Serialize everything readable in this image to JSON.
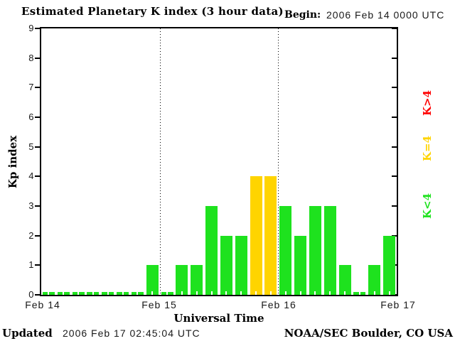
{
  "header": {
    "title": "Estimated Planetary K index (3 hour data)",
    "begin_label": "Begin:",
    "begin_value": "2006 Feb 14 0000 UTC"
  },
  "chart_data": {
    "type": "bar",
    "title": "Estimated Planetary K index (3 hour data)",
    "xlabel": "Universal Time",
    "ylabel": "Kp index",
    "ylim": [
      0,
      9
    ],
    "y_ticks": [
      0,
      1,
      2,
      3,
      4,
      5,
      6,
      7,
      8,
      9
    ],
    "x_tick_labels": [
      "Feb 14",
      "Feb 15",
      "Feb 16",
      "Feb 17"
    ],
    "hours_per_bar": 3,
    "bars_per_day": 8,
    "values": [
      0,
      0,
      0,
      0,
      0,
      0,
      0,
      1,
      0,
      1,
      1,
      3,
      2,
      2,
      4,
      4,
      3,
      2,
      3,
      3,
      1,
      0,
      1,
      2
    ],
    "color_rules": {
      "below_4": "#1ee21e",
      "equal_4": "#ffd400",
      "above_4": "#ff0000"
    },
    "legend": [
      {
        "label": "K>4",
        "color": "#ff0000"
      },
      {
        "label": "K=4",
        "color": "#ffd400"
      },
      {
        "label": "K<4",
        "color": "#1ee21e"
      }
    ],
    "grid": "dotted vertical day-boundary lines",
    "legend_position": "right"
  },
  "footer": {
    "updated_label": "Updated",
    "updated_value": "2006 Feb 17 02:45:04 UTC",
    "source": "NOAA/SEC Boulder, CO USA"
  }
}
